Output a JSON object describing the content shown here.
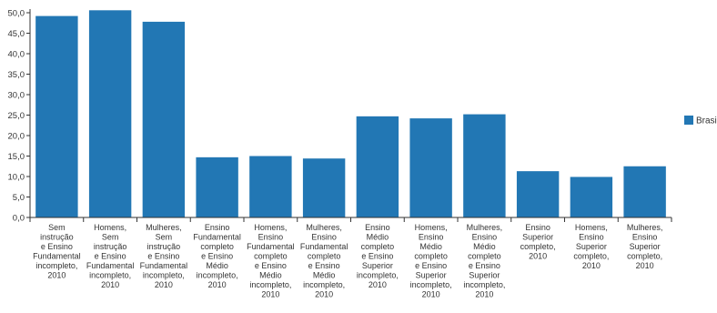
{
  "chart_data": {
    "type": "bar",
    "title": "",
    "xlabel": "",
    "ylabel": "",
    "ylim": [
      0,
      50
    ],
    "yticks": [
      "0,0",
      "5,0",
      "10,0",
      "15,0",
      "20,0",
      "25,0",
      "30,0",
      "35,0",
      "40,0",
      "45,0",
      "50,0"
    ],
    "grid": false,
    "legend_position": "right",
    "categories": [
      [
        "Sem",
        "instrução",
        "e Ensino",
        "Fundamental",
        "incompleto,",
        "2010"
      ],
      [
        "Homens,",
        "Sem",
        "instrução",
        "e Ensino",
        "Fundamental",
        "incompleto,",
        "2010"
      ],
      [
        "Mulheres,",
        "Sem",
        "instrução",
        "e Ensino",
        "Fundamental",
        "incompleto,",
        "2010"
      ],
      [
        "Ensino",
        "Fundamental",
        "completo",
        "e Ensino",
        "Médio",
        "incompleto,",
        "2010"
      ],
      [
        "Homens,",
        "Ensino",
        "Fundamental",
        "completo",
        "e Ensino",
        "Médio",
        "incompleto,",
        "2010"
      ],
      [
        "Mulheres,",
        "Ensino",
        "Fundamental",
        "completo",
        "e Ensino",
        "Médio",
        "incompleto,",
        "2010"
      ],
      [
        "Ensino",
        "Médio",
        "completo",
        "e Ensino",
        "Superior",
        "incompleto,",
        "2010"
      ],
      [
        "Homens,",
        "Ensino",
        "Médio",
        "completo",
        "e Ensino",
        "Superior",
        "incompleto,",
        "2010"
      ],
      [
        "Mulheres,",
        "Ensino",
        "Médio",
        "completo",
        "e Ensino",
        "Superior",
        "incompleto,",
        "2010"
      ],
      [
        "Ensino",
        "Superior",
        "completo,",
        "2010"
      ],
      [
        "Homens,",
        "Ensino",
        "Superior",
        "completo,",
        "2010"
      ],
      [
        "Mulheres,",
        "Ensino",
        "Superior",
        "completo,",
        "2010"
      ]
    ],
    "series": [
      {
        "name": "Brasil",
        "color": "#2277b4",
        "values": [
          49.2,
          50.6,
          47.8,
          14.7,
          15.0,
          14.4,
          24.7,
          24.2,
          25.2,
          11.3,
          9.9,
          12.5
        ]
      }
    ]
  }
}
